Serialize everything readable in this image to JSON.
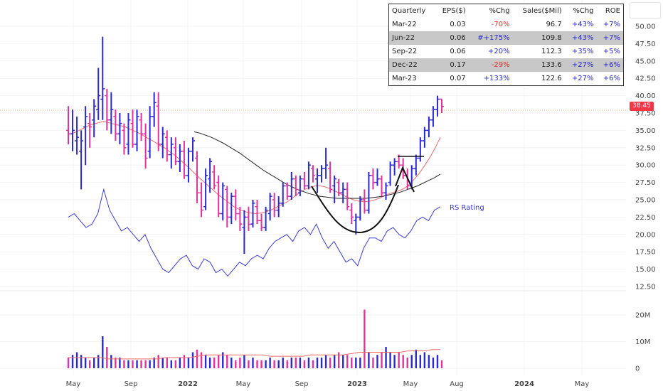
{
  "chart_data": {
    "type": "bar",
    "price_axis": {
      "ylim": [
        11.5,
        52.0
      ],
      "ticks": [
        "50.00",
        "47.50",
        "45.00",
        "42.50",
        "40.00",
        "37.50",
        "35.00",
        "32.50",
        "30.00",
        "27.50",
        "25.00",
        "22.50",
        "20.00",
        "17.50",
        "15.00",
        "12.50"
      ]
    },
    "volume_axis": {
      "ticks": [
        "20M",
        "10M",
        "0"
      ]
    },
    "x_axis_labels": [
      {
        "label": "May",
        "bold": false
      },
      {
        "label": "Sep",
        "bold": false
      },
      {
        "label": "2022",
        "bold": true
      },
      {
        "label": "May",
        "bold": false
      },
      {
        "label": "Sep",
        "bold": false
      },
      {
        "label": "2023",
        "bold": true
      },
      {
        "label": "May",
        "bold": false
      },
      {
        "label": "Aug",
        "bold": false
      },
      {
        "label": "2024",
        "bold": true
      },
      {
        "label": "May",
        "bold": false
      }
    ],
    "last_price": "38.45",
    "rs_label": "RS Rating",
    "colors": {
      "up": "#2a2acf",
      "down": "#e0339e",
      "ma_fast": "#f06a6a",
      "ma_slow": "#222222",
      "rs": "#3a3ad4",
      "volume_ma": "#f06a6a",
      "badge": "#f23645"
    },
    "price_bars": [
      {
        "o": 35.0,
        "h": 38.5,
        "l": 33.0,
        "c": 34.5,
        "v": 4
      },
      {
        "o": 34.5,
        "h": 38.0,
        "l": 32.0,
        "c": 35.0,
        "v": 5
      },
      {
        "o": 33.5,
        "h": 37.0,
        "l": 31.5,
        "c": 34.0,
        "v": 6
      },
      {
        "o": 32.0,
        "h": 35.0,
        "l": 26.5,
        "c": 33.5,
        "v": 5
      },
      {
        "o": 35.5,
        "h": 38.5,
        "l": 30.0,
        "c": 37.0,
        "v": 4
      },
      {
        "o": 36.0,
        "h": 37.5,
        "l": 32.5,
        "c": 35.5,
        "v": 3
      },
      {
        "o": 36.5,
        "h": 39.5,
        "l": 34.0,
        "c": 38.5,
        "v": 4
      },
      {
        "o": 38.0,
        "h": 44.0,
        "l": 36.5,
        "c": 40.0,
        "v": 5
      },
      {
        "o": 39.5,
        "h": 48.5,
        "l": 36.5,
        "c": 41.0,
        "v": 12
      },
      {
        "o": 40.0,
        "h": 41.0,
        "l": 35.0,
        "c": 36.5,
        "v": 8
      },
      {
        "o": 36.5,
        "h": 40.5,
        "l": 34.5,
        "c": 38.0,
        "v": 5
      },
      {
        "o": 37.0,
        "h": 38.0,
        "l": 33.5,
        "c": 34.5,
        "v": 4
      },
      {
        "o": 34.5,
        "h": 37.5,
        "l": 33.0,
        "c": 36.0,
        "v": 4
      },
      {
        "o": 35.0,
        "h": 36.0,
        "l": 31.5,
        "c": 32.5,
        "v": 3
      },
      {
        "o": 33.0,
        "h": 37.5,
        "l": 31.5,
        "c": 36.5,
        "v": 3
      },
      {
        "o": 36.0,
        "h": 38.0,
        "l": 32.5,
        "c": 33.0,
        "v": 3
      },
      {
        "o": 33.0,
        "h": 38.0,
        "l": 32.0,
        "c": 37.0,
        "v": 3
      },
      {
        "o": 36.5,
        "h": 37.5,
        "l": 33.5,
        "c": 34.5,
        "v": 3
      },
      {
        "o": 34.5,
        "h": 36.0,
        "l": 29.5,
        "c": 31.0,
        "v": 3
      },
      {
        "o": 32.0,
        "h": 38.5,
        "l": 31.0,
        "c": 37.0,
        "v": 3
      },
      {
        "o": 37.0,
        "h": 40.5,
        "l": 35.5,
        "c": 39.0,
        "v": 4
      },
      {
        "o": 38.5,
        "h": 40.5,
        "l": 32.0,
        "c": 33.0,
        "v": 5
      },
      {
        "o": 33.0,
        "h": 35.5,
        "l": 31.0,
        "c": 34.5,
        "v": 4
      },
      {
        "o": 34.0,
        "h": 35.0,
        "l": 30.5,
        "c": 31.5,
        "v": 4
      },
      {
        "o": 31.5,
        "h": 34.0,
        "l": 29.5,
        "c": 33.0,
        "v": 3
      },
      {
        "o": 32.5,
        "h": 34.0,
        "l": 30.0,
        "c": 30.5,
        "v": 3
      },
      {
        "o": 30.5,
        "h": 33.0,
        "l": 29.0,
        "c": 32.0,
        "v": 4
      },
      {
        "o": 32.0,
        "h": 33.5,
        "l": 28.0,
        "c": 28.5,
        "v": 5
      },
      {
        "o": 28.5,
        "h": 32.5,
        "l": 27.5,
        "c": 32.0,
        "v": 4
      },
      {
        "o": 32.0,
        "h": 34.0,
        "l": 30.5,
        "c": 33.5,
        "v": 6
      },
      {
        "o": 31.0,
        "h": 32.0,
        "l": 24.5,
        "c": 26.0,
        "v": 7
      },
      {
        "o": 26.0,
        "h": 27.5,
        "l": 22.5,
        "c": 23.5,
        "v": 6
      },
      {
        "o": 24.0,
        "h": 29.5,
        "l": 23.5,
        "c": 28.5,
        "v": 5
      },
      {
        "o": 28.0,
        "h": 31.0,
        "l": 26.0,
        "c": 30.5,
        "v": 4
      },
      {
        "o": 29.0,
        "h": 30.0,
        "l": 26.5,
        "c": 27.0,
        "v": 4
      },
      {
        "o": 27.5,
        "h": 28.5,
        "l": 22.5,
        "c": 23.0,
        "v": 5
      },
      {
        "o": 23.0,
        "h": 27.5,
        "l": 22.0,
        "c": 27.0,
        "v": 6
      },
      {
        "o": 26.5,
        "h": 27.0,
        "l": 21.0,
        "c": 22.5,
        "v": 5
      },
      {
        "o": 22.5,
        "h": 26.0,
        "l": 21.5,
        "c": 25.5,
        "v": 4
      },
      {
        "o": 25.5,
        "h": 26.5,
        "l": 22.0,
        "c": 23.0,
        "v": 3
      },
      {
        "o": 23.0,
        "h": 24.0,
        "l": 20.5,
        "c": 21.5,
        "v": 4
      },
      {
        "o": 21.0,
        "h": 23.5,
        "l": 17.2,
        "c": 22.5,
        "v": 5
      },
      {
        "o": 22.5,
        "h": 24.0,
        "l": 20.5,
        "c": 21.5,
        "v": 3
      },
      {
        "o": 21.5,
        "h": 25.0,
        "l": 21.0,
        "c": 24.5,
        "v": 4
      },
      {
        "o": 24.0,
        "h": 25.0,
        "l": 21.5,
        "c": 22.0,
        "v": 3
      },
      {
        "o": 22.0,
        "h": 23.0,
        "l": 20.5,
        "c": 21.0,
        "v": 3
      },
      {
        "o": 21.0,
        "h": 24.0,
        "l": 20.5,
        "c": 23.5,
        "v": 3
      },
      {
        "o": 23.0,
        "h": 26.0,
        "l": 22.0,
        "c": 25.5,
        "v": 4
      },
      {
        "o": 25.0,
        "h": 26.0,
        "l": 22.5,
        "c": 23.5,
        "v": 3
      },
      {
        "o": 23.5,
        "h": 25.5,
        "l": 22.5,
        "c": 24.5,
        "v": 3
      },
      {
        "o": 24.5,
        "h": 27.5,
        "l": 24.0,
        "c": 27.0,
        "v": 4
      },
      {
        "o": 27.0,
        "h": 27.5,
        "l": 25.0,
        "c": 25.5,
        "v": 3
      },
      {
        "o": 25.5,
        "h": 29.0,
        "l": 25.0,
        "c": 28.0,
        "v": 4
      },
      {
        "o": 28.0,
        "h": 28.5,
        "l": 25.5,
        "c": 26.5,
        "v": 4
      },
      {
        "o": 26.0,
        "h": 28.5,
        "l": 25.5,
        "c": 28.0,
        "v": 4
      },
      {
        "o": 28.0,
        "h": 29.0,
        "l": 26.5,
        "c": 27.0,
        "v": 3
      },
      {
        "o": 27.0,
        "h": 30.5,
        "l": 26.5,
        "c": 30.0,
        "v": 4
      },
      {
        "o": 29.5,
        "h": 30.0,
        "l": 27.5,
        "c": 28.5,
        "v": 3
      },
      {
        "o": 28.0,
        "h": 29.5,
        "l": 26.0,
        "c": 28.5,
        "v": 4
      },
      {
        "o": 28.5,
        "h": 30.0,
        "l": 27.5,
        "c": 29.5,
        "v": 4
      },
      {
        "o": 29.5,
        "h": 32.5,
        "l": 28.0,
        "c": 30.0,
        "v": 5
      },
      {
        "o": 29.5,
        "h": 30.5,
        "l": 26.0,
        "c": 26.5,
        "v": 4
      },
      {
        "o": 27.0,
        "h": 28.5,
        "l": 24.5,
        "c": 28.0,
        "v": 5
      },
      {
        "o": 27.5,
        "h": 28.0,
        "l": 25.5,
        "c": 26.0,
        "v": 6
      },
      {
        "o": 26.0,
        "h": 27.5,
        "l": 24.5,
        "c": 26.5,
        "v": 5
      },
      {
        "o": 26.5,
        "h": 27.5,
        "l": 23.5,
        "c": 24.0,
        "v": 5
      },
      {
        "o": 23.5,
        "h": 24.5,
        "l": 21.5,
        "c": 22.5,
        "v": 4
      },
      {
        "o": 22.0,
        "h": 23.0,
        "l": 20.0,
        "c": 22.5,
        "v": 4
      },
      {
        "o": 22.5,
        "h": 25.5,
        "l": 22.0,
        "c": 25.0,
        "v": 4
      },
      {
        "o": 25.0,
        "h": 26.5,
        "l": 23.0,
        "c": 23.5,
        "v": 22
      },
      {
        "o": 23.5,
        "h": 29.0,
        "l": 23.0,
        "c": 28.5,
        "v": 6
      },
      {
        "o": 28.5,
        "h": 29.5,
        "l": 26.5,
        "c": 27.5,
        "v": 4
      },
      {
        "o": 27.5,
        "h": 29.5,
        "l": 27.0,
        "c": 28.0,
        "v": 5
      },
      {
        "o": 28.0,
        "h": 28.5,
        "l": 25.5,
        "c": 26.0,
        "v": 6
      },
      {
        "o": 26.0,
        "h": 27.5,
        "l": 25.0,
        "c": 27.0,
        "v": 8
      },
      {
        "o": 27.5,
        "h": 30.5,
        "l": 27.0,
        "c": 30.0,
        "v": 6
      },
      {
        "o": 30.0,
        "h": 31.0,
        "l": 28.5,
        "c": 30.5,
        "v": 5
      },
      {
        "o": 30.5,
        "h": 31.5,
        "l": 29.5,
        "c": 30.0,
        "v": 6
      },
      {
        "o": 30.0,
        "h": 31.0,
        "l": 28.0,
        "c": 28.5,
        "v": 5
      },
      {
        "o": 28.5,
        "h": 29.5,
        "l": 26.5,
        "c": 27.0,
        "v": 4
      },
      {
        "o": 27.0,
        "h": 30.0,
        "l": 26.5,
        "c": 29.5,
        "v": 5
      },
      {
        "o": 29.5,
        "h": 31.5,
        "l": 28.5,
        "c": 31.0,
        "v": 7
      },
      {
        "o": 31.0,
        "h": 34.0,
        "l": 30.5,
        "c": 33.5,
        "v": 5
      },
      {
        "o": 33.5,
        "h": 35.5,
        "l": 32.5,
        "c": 35.0,
        "v": 6
      },
      {
        "o": 35.0,
        "h": 37.0,
        "l": 34.0,
        "c": 36.5,
        "v": 5
      },
      {
        "o": 36.5,
        "h": 38.5,
        "l": 35.5,
        "c": 38.0,
        "v": 4
      },
      {
        "o": 38.0,
        "h": 40.0,
        "l": 37.0,
        "c": 39.5,
        "v": 5
      },
      {
        "o": 39.5,
        "h": 39.5,
        "l": 37.5,
        "c": 38.45,
        "v": 3
      }
    ],
    "ma_fast": [
      34.5,
      34.8,
      35.2,
      35.6,
      35.9,
      36.1,
      36.3,
      36.1,
      35.9,
      35.7,
      35.5,
      35.1,
      34.8,
      34.4,
      33.9,
      33.5,
      33.0,
      32.6,
      32.0,
      31.5,
      30.8,
      30.1,
      29.4,
      28.6,
      27.9,
      27.2,
      26.5,
      25.8,
      25.2,
      24.6,
      24.0,
      23.6,
      23.3,
      23.1,
      23.0,
      23.1,
      23.3,
      23.6,
      24.0,
      24.4,
      24.8,
      25.4,
      26.0,
      26.5,
      26.8,
      27.0,
      27.0,
      26.8,
      26.5,
      26.1,
      25.7,
      25.3,
      25.0,
      24.8,
      24.7,
      24.8,
      25.0,
      25.3,
      25.7,
      26.0,
      26.2,
      26.5,
      27.0,
      27.8,
      28.7,
      29.8,
      31.0,
      32.4,
      34.0
    ],
    "ma_slow": [
      34.8,
      34.6,
      34.3,
      34.0,
      33.6,
      33.2,
      32.7,
      32.2,
      31.7,
      31.1,
      30.5,
      29.9,
      29.3,
      28.8,
      28.3,
      27.8,
      27.3,
      26.9,
      26.5,
      26.2,
      25.9,
      25.7,
      25.5,
      25.4,
      25.3,
      25.2,
      25.2,
      25.2,
      25.2,
      25.2,
      25.2,
      25.3,
      25.4,
      25.5,
      25.7,
      25.9,
      26.1,
      26.4,
      26.7,
      27.0,
      27.4,
      27.8,
      28.2,
      28.7
    ],
    "rs_line": [
      22.5,
      23.0,
      22.0,
      21.0,
      21.5,
      23.0,
      26.5,
      23.5,
      22.0,
      20.5,
      21.0,
      20.0,
      19.0,
      20.0,
      18.0,
      16.5,
      15.0,
      14.5,
      15.5,
      16.5,
      17.0,
      15.5,
      15.0,
      16.5,
      16.0,
      14.5,
      15.0,
      14.0,
      15.0,
      16.0,
      15.5,
      16.5,
      17.0,
      16.5,
      18.0,
      19.0,
      19.5,
      20.0,
      19.0,
      20.5,
      21.0,
      20.0,
      21.5,
      19.5,
      18.0,
      19.0,
      17.5,
      16.0,
      16.5,
      15.5,
      18.0,
      19.5,
      19.5,
      19.0,
      20.5,
      21.0,
      20.0,
      19.5,
      20.5,
      22.0,
      22.5,
      22.0,
      23.5,
      24.0
    ],
    "volume_ma": [
      4,
      4,
      4,
      4,
      4,
      3.5,
      3.5,
      3.5,
      3.5,
      3.5,
      3.5,
      3.5,
      4,
      4,
      4,
      4,
      4.5,
      5,
      5,
      5,
      5,
      5,
      5,
      5,
      5,
      4.5,
      4.5,
      4.5,
      4.5,
      4.5,
      5,
      5,
      5,
      5,
      5,
      5.5,
      6,
      6,
      6,
      6,
      6,
      6,
      6.5,
      6.5,
      6.5,
      7,
      7
    ],
    "pattern_annotation": "cup-with-handle"
  },
  "fundamentals": {
    "headers": [
      "Quarterly",
      "EPS($)",
      "%Chg",
      "Sales($Mil)",
      "%Chg",
      "ROE"
    ],
    "rows": [
      {
        "q": "Mar-22",
        "eps": "0.03",
        "eps_chg": "-70%",
        "eps_chg_color": "#e03030",
        "sales": "96.7",
        "sales_chg": "+43%",
        "roe": "+7%",
        "shaded": false
      },
      {
        "q": "Jun-22",
        "eps": "0.06",
        "eps_chg": "#+175%",
        "eps_chg_color": "#2a2acf",
        "sales": "109.8",
        "sales_chg": "+43%",
        "roe": "+7%",
        "shaded": true
      },
      {
        "q": "Sep-22",
        "eps": "0.06",
        "eps_chg": "+20%",
        "eps_chg_color": "#2a2acf",
        "sales": "112.3",
        "sales_chg": "+35%",
        "roe": "+5%",
        "shaded": false
      },
      {
        "q": "Dec-22",
        "eps": "0.17",
        "eps_chg": "-29%",
        "eps_chg_color": "#e03030",
        "sales": "133.6",
        "sales_chg": "+27%",
        "roe": "+6%",
        "shaded": true
      },
      {
        "q": "Mar-23",
        "eps": "0.07",
        "eps_chg": "+133%",
        "eps_chg_color": "#2a2acf",
        "sales": "122.6",
        "sales_chg": "+27%",
        "roe": "+6%",
        "shaded": false
      }
    ]
  }
}
